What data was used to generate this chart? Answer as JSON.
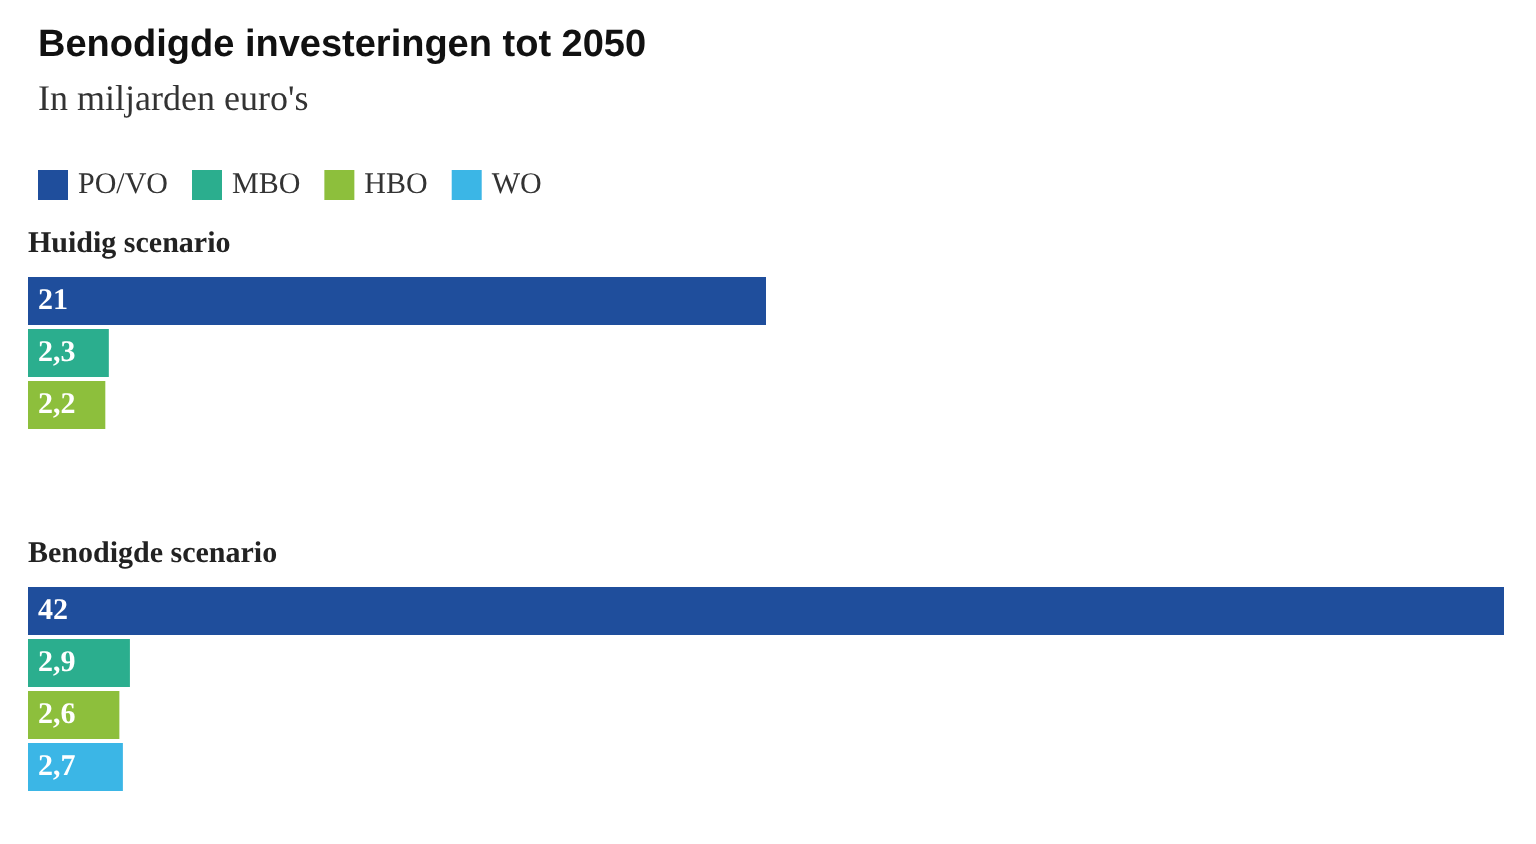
{
  "chart_data": {
    "type": "bar",
    "orientation": "horizontal",
    "title": "Benodigde investeringen tot 2050",
    "subtitle": "In miljarden euro's",
    "categories": [
      "Huidig scenario",
      "Benodigde scenario"
    ],
    "legend": "top left",
    "series": [
      {
        "name": "PO/VO",
        "color": "#1f4e9c",
        "values": [
          21,
          42
        ],
        "value_labels": [
          "21",
          "42"
        ]
      },
      {
        "name": "MBO",
        "color": "#2bae8e",
        "values": [
          2.3,
          2.9
        ],
        "value_labels": [
          "2,3",
          "2,9"
        ]
      },
      {
        "name": "HBO",
        "color": "#8dbf3c",
        "values": [
          2.2,
          2.6
        ],
        "value_labels": [
          "2,2",
          "2,6"
        ]
      },
      {
        "name": "WO",
        "color": "#3bb6e6",
        "values": [
          null,
          2.7
        ],
        "value_labels": [
          null,
          "2,7"
        ]
      }
    ]
  }
}
